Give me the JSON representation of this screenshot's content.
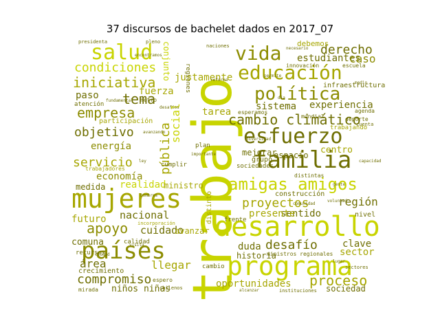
{
  "title": "37 discursos de bachelet dados en 2017_07",
  "colors": {
    "c1": "#c8d400",
    "c2": "#a6a600",
    "c3": "#8c8c00",
    "c4": "#6e6e00",
    "c5": "#b5b51a"
  },
  "words": {
    "trabajo": "trabajo",
    "mujeres": "mujeres",
    "desarrollo": "desarrollo",
    "programa": "programa",
    "paises": "países",
    "familia": "familia",
    "esfuerzo": "esfuerzo",
    "educacion": "educación",
    "vida": "vida",
    "salud": "salud",
    "amigas_amigos": "amigas amigos",
    "cambio_climatico": "cambio climático",
    "politica": "política",
    "condiciones": "condiciones",
    "iniciativa": "iniciativa",
    "derecho": "derecho",
    "proyectos": "proyectos",
    "apoyo": "apoyo",
    "compromiso": "compromiso",
    "proceso": "proceso",
    "empresa": "empresa",
    "objetivo": "objetivo",
    "servicio": "servicio",
    "region": "región",
    "desafio": "desafío",
    "tema": "tema",
    "fuerza": "fuerza",
    "justamente": "justamente",
    "publica": "pública",
    "social": "social",
    "estudiantes": "estudiantes",
    "caso": "caso",
    "experiencia": "experiencia",
    "sistema": "sistema",
    "energia": "energía",
    "economia": "economía",
    "realidad": "realidad",
    "nacional": "nacional",
    "cuidado": "cuidado",
    "sentido": "sentido",
    "presente": "presente",
    "historia": "historia",
    "clave": "clave",
    "sector": "sector",
    "oportunidades": "oportunidades",
    "sociedad": "sociedad",
    "ninos_ninas": "niños niñas",
    "area": "área",
    "llegar": "llegar",
    "duda": "duda",
    "futuro": "futuro",
    "comuna": "comuna",
    "paso": "paso",
    "tarea": "tarea",
    "medida": "medida",
    "ministro": "ministro",
    "mejorar": "mejorar",
    "espacio": "espacio",
    "centro": "centro",
    "avanzar": "avanzar",
    "conjunto": "conjunto",
    "debemos": "debemos",
    "atencion": "atención",
    "participacion": "participación",
    "construccion": "construcción",
    "infraestructura": "infraestructura",
    "crecimiento": "crecimiento",
    "nivel": "nivel",
    "distinto": "distinto",
    "grupo": "grupo",
    "sociedades": "sociedades",
    "cumplir": "cumplir",
    "plan": "plan",
    "frente": "frente",
    "cambio": "cambio",
    "mundial": "mundial",
    "esperamos": "esperamos",
    "trabajando": "trabajando",
    "calidad": "calidad",
    "recursos": "recursos",
    "mirada": "mirada",
    "espero": "espero",
    "innovacion": "innovación",
    "escuela": "escuela",
    "agenda": "agenda",
    "deporte": "deporte",
    "regiones": "regiones",
    "ministros_regionales": "ministros regionales",
    "distintas": "distintas",
    "instituciones": "instituciones",
    "metro": "metro",
    "trabajadores": "trabajadores",
    "pleno": "pleno",
    "presidenta": "presidenta",
    "naciones": "naciones",
    "incorporacion": "incorporación",
    "visita": "visita",
    "cuenta": "cuenta",
    "sectores": "sectores",
    "encontramos": "encontramos",
    "avanzando": "avanzando",
    "voluntad": "voluntad",
    "alcanzar": "alcanzar",
    "chilenos": "chilenos",
    "necesario": "necesario",
    "permite": "permite",
    "gente": "gente",
    "capacidad": "capacidad",
    "diversidad": "diversidad",
    "fundamental": "fundamental",
    "desafios": "desafíos",
    "importante": "importante",
    "comunidad": "comunidad",
    "medio": "medio",
    "hombres": "hombres",
    "lugar": "lugar",
    "reforma": "reforma",
    "ciudad": "ciudad",
    "ley": "ley",
    "dia": "día"
  }
}
